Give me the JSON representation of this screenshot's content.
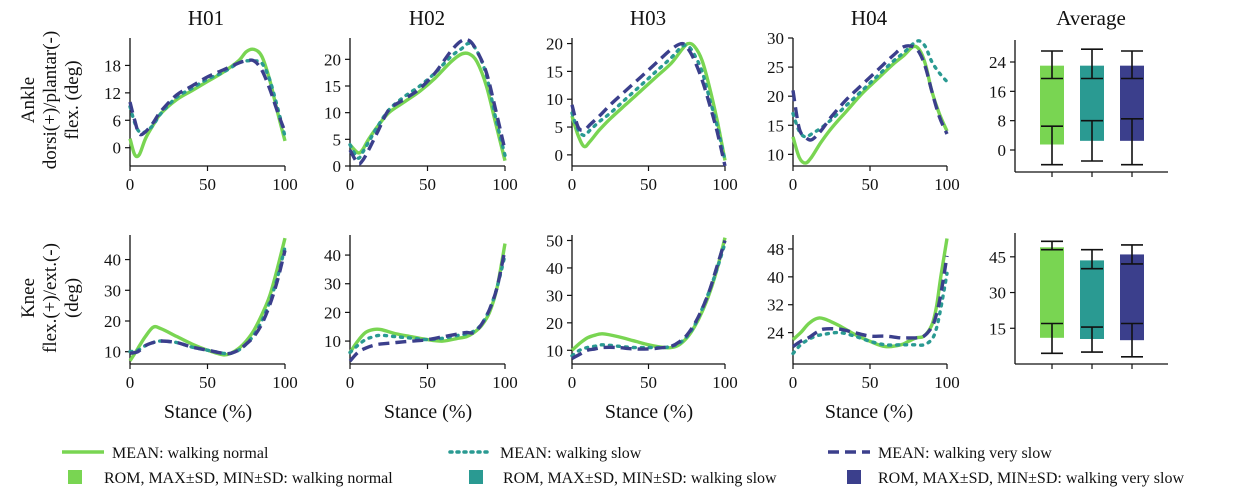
{
  "colors": {
    "walking_normal": "#79d552",
    "walking_slow": "#2a9a92",
    "walking_very_slow": "#3b3f8c"
  },
  "chart_data": {
    "type": "line",
    "column_titles": [
      "H01",
      "H02",
      "H03",
      "H04",
      "Average"
    ],
    "row_ylabels": [
      [
        "Ankle",
        "dorsi(+)/plantar(-)",
        "flex. (deg)"
      ],
      [
        "Knee",
        "flex.(+)/ext.(-)",
        "(deg)"
      ]
    ],
    "xlabel": "Stance (%)",
    "xlim": [
      0,
      100
    ],
    "xticks": [
      0,
      50,
      100
    ],
    "legend": {
      "placement": "bottom",
      "entries": [
        "MEAN: walking normal",
        "MEAN: walking slow",
        "MEAN: walking very slow",
        "ROM, MAX±SD, MIN±SD: walking normal",
        "ROM, MAX±SD, MIN±SD: walking slow",
        "ROM, MAX±SD, MIN±SD: walking very slow"
      ]
    },
    "panels": [
      {
        "id": "ankle-h01",
        "title": "H01",
        "ylim": [
          -4,
          24
        ],
        "yticks": [
          0,
          6,
          12,
          18
        ],
        "x": [
          0,
          3,
          6,
          10,
          15,
          20,
          30,
          40,
          50,
          60,
          70,
          75,
          80,
          85,
          90,
          95,
          100
        ],
        "series": [
          {
            "name": "walking normal",
            "values": [
              2,
              -1.5,
              -1.5,
              2,
              5,
              7.5,
              10.5,
              12.5,
              14.5,
              16.5,
              19,
              21,
              21.5,
              20,
              15,
              8,
              1.5
            ]
          },
          {
            "name": "walking slow",
            "values": [
              9,
              5.5,
              3.5,
              3.5,
              5,
              7.5,
              11,
              13,
              15,
              16.5,
              18.5,
              19,
              19,
              18.5,
              15,
              9,
              2.5
            ]
          },
          {
            "name": "walking very slow",
            "values": [
              10,
              6,
              3,
              3.5,
              5.5,
              8,
              11.5,
              13.5,
              15.5,
              17,
              18.5,
              19,
              19,
              17,
              13,
              8,
              3.5
            ]
          }
        ]
      },
      {
        "id": "ankle-h02",
        "title": "H02",
        "ylim": [
          0,
          24
        ],
        "yticks": [
          0,
          5,
          10,
          15,
          20
        ],
        "x": [
          0,
          5,
          8,
          12,
          18,
          25,
          35,
          45,
          55,
          65,
          72,
          77,
          82,
          88,
          94,
          100
        ],
        "series": [
          {
            "name": "walking normal",
            "values": [
              4,
              2.5,
              3,
              5,
              7.5,
              10,
              12,
              14,
              16.5,
              19.5,
              21,
              21,
              19.5,
              15,
              8,
              1
            ]
          },
          {
            "name": "walking slow",
            "values": [
              4,
              1.5,
              2.5,
              4.5,
              7.5,
              10.5,
              13,
              15,
              17.5,
              20.5,
              22,
              23,
              21.5,
              17,
              9,
              2
            ]
          },
          {
            "name": "walking very slow",
            "values": [
              3,
              0.5,
              1,
              3,
              6.5,
              10.5,
              12.5,
              14.5,
              17.5,
              21.5,
              23.5,
              23.5,
              21.5,
              17.5,
              10.5,
              3
            ]
          }
        ]
      },
      {
        "id": "ankle-h03",
        "title": "H03",
        "ylim": [
          -2,
          21
        ],
        "yticks": [
          0,
          5,
          10,
          15,
          20
        ],
        "x": [
          0,
          4,
          8,
          12,
          18,
          25,
          35,
          45,
          55,
          65,
          72,
          76,
          80,
          85,
          90,
          95,
          100
        ],
        "series": [
          {
            "name": "walking normal",
            "values": [
              7,
              3.5,
              1.5,
              2.5,
              4.5,
              6.5,
              9,
              11.5,
              14,
              16.5,
              19,
              20,
              19.5,
              17,
              12,
              6,
              -1
            ]
          },
          {
            "name": "walking slow",
            "values": [
              7.5,
              4.5,
              3.5,
              4.5,
              6,
              7.5,
              10,
              12.5,
              15,
              17.5,
              19.5,
              19.5,
              18,
              15,
              10,
              5,
              -1
            ]
          },
          {
            "name": "walking very slow",
            "values": [
              9,
              5,
              4.5,
              5.5,
              7,
              9,
              11.5,
              14,
              16.5,
              19,
              20,
              19,
              17,
              13.5,
              9,
              4,
              -2
            ]
          }
        ]
      },
      {
        "id": "ankle-h04",
        "title": "H04",
        "ylim": [
          8,
          30
        ],
        "yticks": [
          10,
          15,
          20,
          25,
          30
        ],
        "x": [
          0,
          4,
          8,
          12,
          18,
          25,
          35,
          45,
          55,
          65,
          72,
          78,
          82,
          86,
          90,
          95,
          100
        ],
        "series": [
          {
            "name": "walking normal",
            "values": [
              13,
              9.5,
              8.5,
              9.5,
              12,
              14.5,
              17.5,
              20.5,
              23,
              25.5,
              27,
              28.5,
              28,
              25.5,
              21,
              17,
              14
            ]
          },
          {
            "name": "walking slow",
            "values": [
              17,
              14,
              13,
              13.5,
              14.5,
              16,
              18.5,
              21,
              23.5,
              26,
              27.5,
              29,
              29.5,
              28.5,
              26,
              24,
              22.5
            ]
          },
          {
            "name": "walking very slow",
            "values": [
              21,
              14.5,
              13,
              12.5,
              14,
              16.5,
              19.5,
              22,
              24.5,
              27,
              28.5,
              28.5,
              27.5,
              25,
              21,
              16.5,
              13.5
            ]
          }
        ]
      },
      {
        "id": "knee-h01",
        "title": "H01",
        "ylim": [
          6,
          48
        ],
        "yticks": [
          10,
          20,
          30,
          40
        ],
        "x": [
          0,
          5,
          10,
          15,
          20,
          30,
          40,
          50,
          60,
          65,
          70,
          75,
          80,
          85,
          90,
          95,
          100
        ],
        "series": [
          {
            "name": "walking normal",
            "values": [
              7,
              11,
              15,
              18,
              17.5,
              15,
              12.5,
              10.5,
              9,
              9.5,
              11,
              13.5,
              17,
              22,
              28,
              37,
              47
            ]
          },
          {
            "name": "walking slow",
            "values": [
              10,
              10.5,
              12,
              13,
              13.5,
              13,
              11.5,
              10.5,
              9.5,
              9.5,
              10.5,
              12.5,
              15.5,
              20,
              26,
              34,
              44
            ]
          },
          {
            "name": "walking very slow",
            "values": [
              9.5,
              10,
              12,
              13,
              13.5,
              13,
              11.5,
              10.5,
              9.5,
              9.5,
              10.5,
              12.5,
              15,
              19,
              25,
              33,
              43
            ]
          }
        ]
      },
      {
        "id": "knee-h02",
        "title": "H02",
        "ylim": [
          2,
          47
        ],
        "yticks": [
          10,
          20,
          30,
          40
        ],
        "x": [
          0,
          5,
          10,
          15,
          20,
          30,
          40,
          50,
          60,
          70,
          75,
          80,
          85,
          90,
          95,
          100
        ],
        "series": [
          {
            "name": "walking normal",
            "values": [
              6,
              10,
              13,
              14,
              14,
              12.5,
              11.5,
              10.5,
              10,
              11,
              11.5,
              13,
              15.5,
              20,
              29,
              44
            ]
          },
          {
            "name": "walking slow",
            "values": [
              6,
              8.5,
              10.5,
              11.5,
              12,
              11.5,
              11,
              10.5,
              11,
              12,
              12.5,
              13.5,
              16,
              21,
              29,
              40
            ]
          },
          {
            "name": "walking very slow",
            "values": [
              3,
              6,
              7.5,
              8.5,
              9,
              9.5,
              10,
              10.5,
              11.5,
              12.5,
              13,
              13,
              16,
              21,
              29,
              42
            ]
          }
        ]
      },
      {
        "id": "knee-h03",
        "title": "H03",
        "ylim": [
          5,
          52
        ],
        "yticks": [
          10,
          20,
          30,
          40,
          50
        ],
        "x": [
          0,
          5,
          10,
          15,
          20,
          30,
          40,
          50,
          60,
          65,
          70,
          75,
          80,
          85,
          90,
          95,
          100
        ],
        "series": [
          {
            "name": "walking normal",
            "values": [
              10,
              12.5,
              14.5,
              15.5,
              16,
              15,
              13.5,
              12,
              11,
              11,
              12,
              14.5,
              18.5,
              24,
              31,
              40,
              51
            ]
          },
          {
            "name": "walking slow",
            "values": [
              8,
              10,
              11,
              11.5,
              12,
              11.5,
              11,
              11,
              11,
              11.5,
              12.5,
              15,
              19,
              25,
              32,
              40,
              49
            ]
          },
          {
            "name": "walking very slow",
            "values": [
              7,
              8.5,
              10,
              10.5,
              11,
              11,
              10.5,
              10.5,
              11,
              11.5,
              13,
              15.5,
              19.5,
              25,
              32,
              41,
              50
            ]
          }
        ]
      },
      {
        "id": "knee-h04",
        "title": "H04",
        "ylim": [
          15,
          52
        ],
        "yticks": [
          24,
          32,
          40,
          48
        ],
        "x": [
          0,
          5,
          10,
          15,
          20,
          30,
          40,
          50,
          60,
          70,
          75,
          80,
          85,
          90,
          93,
          96,
          100
        ],
        "series": [
          {
            "name": "walking normal",
            "values": [
              22,
              24,
              26.5,
              28,
              28,
              26,
              23.5,
              21.5,
              20,
              20.5,
              21.5,
              22.5,
              23,
              26,
              31,
              40,
              51
            ]
          },
          {
            "name": "walking slow",
            "values": [
              18,
              20.5,
              22,
              23,
              23.5,
              24,
              23,
              21.5,
              20.5,
              20.5,
              20.5,
              20.5,
              20.5,
              22,
              25,
              31,
              41
            ]
          },
          {
            "name": "walking very slow",
            "values": [
              20,
              21.5,
              22.5,
              24,
              25,
              25,
              24,
              23,
              23,
              22.5,
              22.5,
              22.5,
              23,
              25.5,
              29,
              35,
              46
            ]
          }
        ]
      },
      {
        "id": "ankle-average",
        "title": "Average",
        "type": "bar",
        "ylim": [
          -6,
          30
        ],
        "yticks": [
          0,
          8,
          16,
          24
        ],
        "categories": [
          "walking normal",
          "walking slow",
          "walking very slow"
        ],
        "series": [
          {
            "name": "walking normal",
            "max": 23,
            "min": 1.5,
            "max_sd": [
              19.5,
              27
            ],
            "min_sd": [
              -4,
              6.5
            ]
          },
          {
            "name": "walking slow",
            "max": 23,
            "min": 2.5,
            "max_sd": [
              19.5,
              27.5
            ],
            "min_sd": [
              -3,
              8
            ]
          },
          {
            "name": "walking very slow",
            "max": 23,
            "min": 2.5,
            "max_sd": [
              19.5,
              27
            ],
            "min_sd": [
              -4,
              8.5
            ]
          }
        ]
      },
      {
        "id": "knee-average",
        "title": "",
        "type": "bar",
        "ylim": [
          0,
          55
        ],
        "yticks": [
          15,
          30,
          45
        ],
        "categories": [
          "walking normal",
          "walking slow",
          "walking very slow"
        ],
        "series": [
          {
            "name": "walking normal",
            "max": 49,
            "min": 11,
            "max_sd": [
              48,
              51.5
            ],
            "min_sd": [
              4.5,
              17
            ]
          },
          {
            "name": "walking slow",
            "max": 43.5,
            "min": 10.5,
            "max_sd": [
              40,
              48
            ],
            "min_sd": [
              5,
              15.5
            ]
          },
          {
            "name": "walking very slow",
            "max": 46,
            "min": 10,
            "max_sd": [
              42,
              50
            ],
            "min_sd": [
              3,
              17
            ]
          }
        ]
      }
    ]
  }
}
